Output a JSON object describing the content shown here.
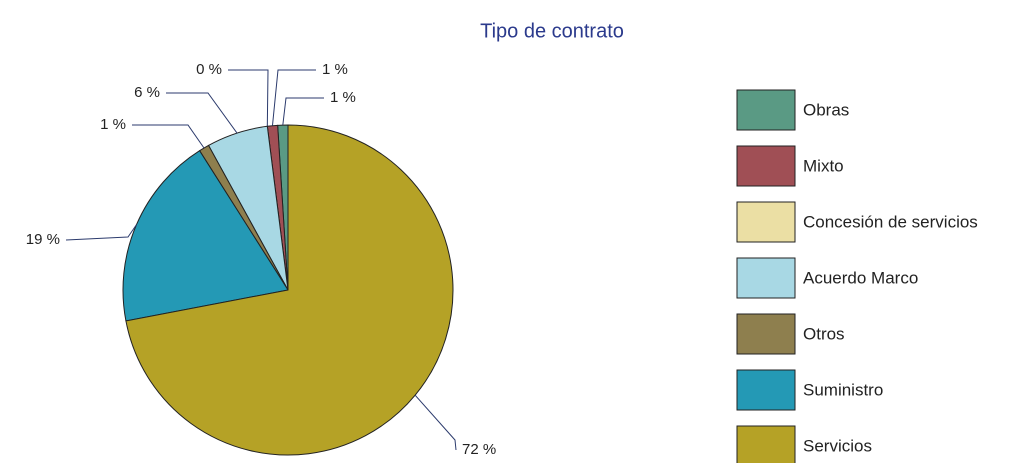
{
  "chart_data": {
    "type": "pie",
    "title": "Tipo de contrato",
    "categories": [
      "Obras",
      "Mixto",
      "Concesión de servicios",
      "Acuerdo Marco",
      "Otros",
      "Suministro",
      "Servicios"
    ],
    "values": [
      1,
      1,
      0,
      6,
      1,
      19,
      72
    ],
    "value_labels": [
      "1 %",
      "1 %",
      "0 %",
      "6 %",
      "1 %",
      "19 %",
      "72 %"
    ],
    "colors": [
      "#5a9a84",
      "#a04f55",
      "#ebdfa4",
      "#a8d8e4",
      "#8e7f4e",
      "#2499b5",
      "#b5a226"
    ],
    "legend": "right"
  }
}
